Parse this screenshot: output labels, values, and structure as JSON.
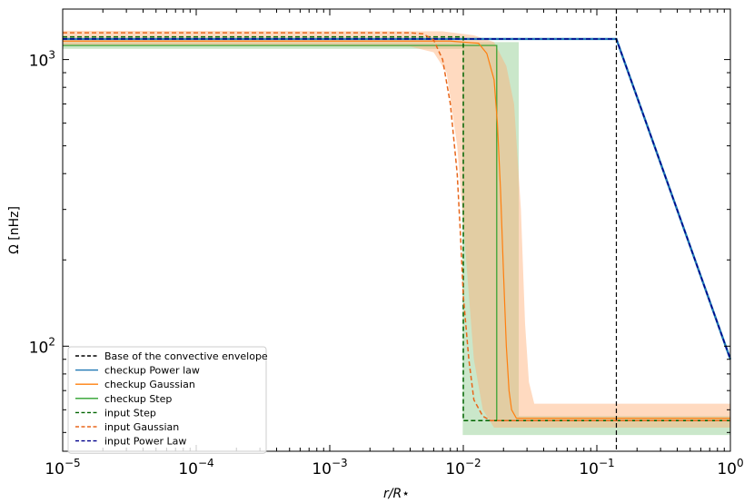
{
  "chart_data": {
    "type": "line",
    "xscale": "log",
    "yscale": "log",
    "xlim": [
      1e-05,
      1
    ],
    "ylim": [
      43,
      1500
    ],
    "xlabel": "r/R⋆",
    "ylabel": "Ω [nHz]",
    "x_ticks": [
      {
        "value": 1e-05,
        "base": "10",
        "exp": "−5"
      },
      {
        "value": 0.0001,
        "base": "10",
        "exp": "−4"
      },
      {
        "value": 0.001,
        "base": "10",
        "exp": "−3"
      },
      {
        "value": 0.01,
        "base": "10",
        "exp": "−2"
      },
      {
        "value": 0.1,
        "base": "10",
        "exp": "−1"
      },
      {
        "value": 1,
        "base": "10",
        "exp": "0"
      }
    ],
    "y_ticks": [
      {
        "value": 100,
        "base": "10",
        "exp": "2"
      },
      {
        "value": 1000,
        "base": "10",
        "exp": "3"
      }
    ],
    "convective_base_x": 0.14,
    "legend_position": "lower left",
    "legend": [
      {
        "label": "Base of the convective envelope",
        "color": "#000000",
        "dash": true
      },
      {
        "label": "checkup Power law",
        "color": "#1f77b4",
        "dash": false
      },
      {
        "label": "checkup Gaussian",
        "color": "#ff7f0e",
        "dash": false
      },
      {
        "label": "checkup Step",
        "color": "#2ca02c",
        "dash": false
      },
      {
        "label": "input Step",
        "color": "#006400",
        "dash": true
      },
      {
        "label": "input Gaussian",
        "color": "#e8661a",
        "dash": true
      },
      {
        "label": "input Power Law",
        "color": "#00008b",
        "dash": true
      }
    ],
    "bands": [
      {
        "name": "Step uncertainty",
        "color": "#2ca02c",
        "opacity": 0.25,
        "upper": [
          [
            1e-05,
            1150
          ],
          [
            0.026,
            1150
          ],
          [
            0.026,
            57
          ],
          [
            1,
            57
          ]
        ],
        "lower": [
          [
            1e-05,
            1090
          ],
          [
            0.0099,
            1090
          ],
          [
            0.0099,
            49
          ],
          [
            1,
            49
          ]
        ]
      },
      {
        "name": "Gaussian uncertainty",
        "color": "#ffad73",
        "opacity": 0.45,
        "upper": [
          [
            1e-05,
            1260
          ],
          [
            0.007,
            1255
          ],
          [
            0.012,
            1215
          ],
          [
            0.017,
            1150
          ],
          [
            0.021,
            950
          ],
          [
            0.024,
            700
          ],
          [
            0.027,
            300
          ],
          [
            0.029,
            120
          ],
          [
            0.031,
            75
          ],
          [
            0.034,
            63
          ],
          [
            1,
            63
          ]
        ],
        "lower": [
          [
            1e-05,
            1120
          ],
          [
            0.004,
            1110
          ],
          [
            0.006,
            1060
          ],
          [
            0.0075,
            900
          ],
          [
            0.009,
            500
          ],
          [
            0.0105,
            200
          ],
          [
            0.012,
            90
          ],
          [
            0.014,
            60
          ],
          [
            0.017,
            52
          ],
          [
            1,
            52
          ]
        ]
      }
    ],
    "series": [
      {
        "name": "checkup Power law",
        "color": "#1f77b4",
        "width": 2.4,
        "dash": false,
        "points": [
          [
            1e-05,
            1180
          ],
          [
            0.14,
            1180
          ],
          [
            1,
            90
          ]
        ]
      },
      {
        "name": "input Power Law",
        "color": "#00008b",
        "width": 1.5,
        "dash": true,
        "points": [
          [
            1e-05,
            1180
          ],
          [
            0.14,
            1180
          ],
          [
            1,
            90
          ]
        ]
      },
      {
        "name": "checkup Step",
        "color": "#2ca02c",
        "width": 1.2,
        "dash": false,
        "points": [
          [
            1e-05,
            1120
          ],
          [
            0.0178,
            1120
          ],
          [
            0.0178,
            55
          ],
          [
            1,
            55
          ]
        ]
      },
      {
        "name": "input Step",
        "color": "#006400",
        "width": 1.5,
        "dash": true,
        "points": [
          [
            1e-05,
            1200
          ],
          [
            0.01,
            1200
          ],
          [
            0.01,
            55
          ],
          [
            1,
            55
          ]
        ]
      },
      {
        "name": "checkup Gaussian",
        "color": "#ff7f0e",
        "width": 1.2,
        "dash": false,
        "points": [
          [
            1e-05,
            1160
          ],
          [
            0.008,
            1160
          ],
          [
            0.013,
            1140
          ],
          [
            0.015,
            1050
          ],
          [
            0.017,
            850
          ],
          [
            0.018,
            600
          ],
          [
            0.019,
            350
          ],
          [
            0.02,
            180
          ],
          [
            0.021,
            100
          ],
          [
            0.022,
            70
          ],
          [
            0.023,
            60
          ],
          [
            0.025,
            56
          ],
          [
            1,
            56
          ]
        ]
      },
      {
        "name": "input Gaussian",
        "color": "#e8661a",
        "width": 1.5,
        "dash": true,
        "points": [
          [
            1e-05,
            1240
          ],
          [
            0.004,
            1240
          ],
          [
            0.005,
            1230
          ],
          [
            0.006,
            1170
          ],
          [
            0.007,
            1000
          ],
          [
            0.008,
            700
          ],
          [
            0.009,
            400
          ],
          [
            0.0095,
            250
          ],
          [
            0.01,
            150
          ],
          [
            0.011,
            90
          ],
          [
            0.012,
            65
          ],
          [
            0.014,
            57
          ],
          [
            0.016,
            55
          ],
          [
            1,
            55
          ]
        ]
      }
    ]
  }
}
